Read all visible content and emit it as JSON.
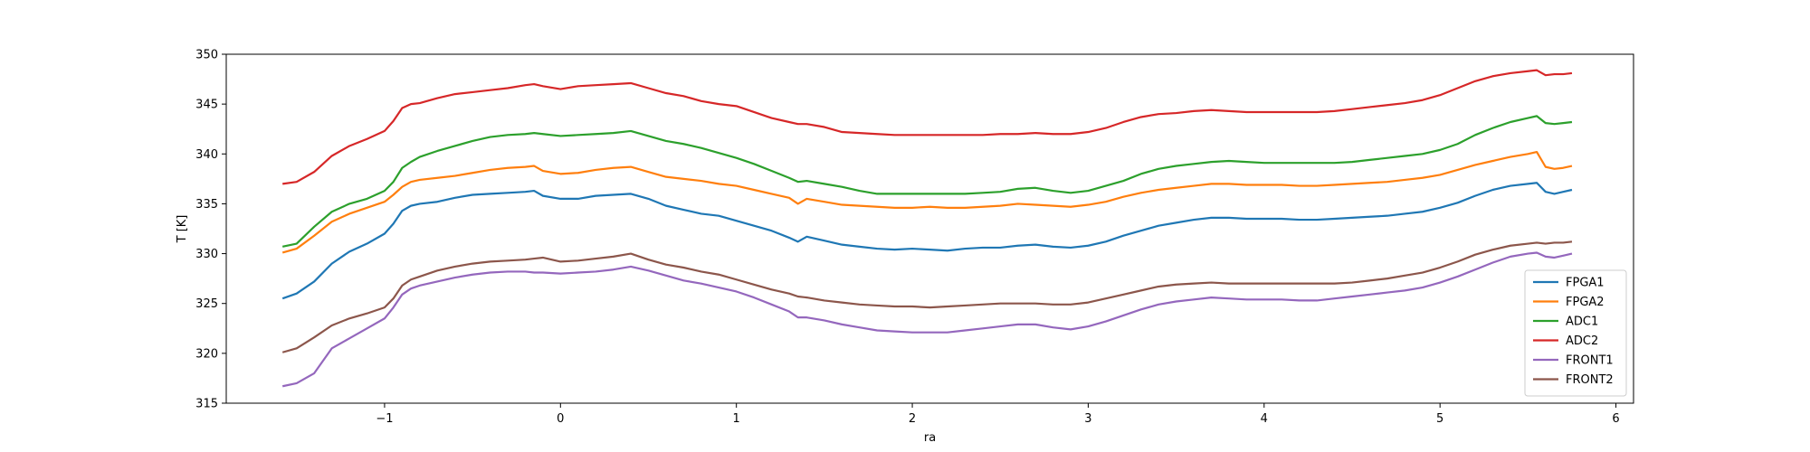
{
  "chart_data": {
    "type": "line",
    "title": "",
    "xlabel": "ra",
    "ylabel": "T [K]",
    "xlim": [
      -1.9,
      6.1
    ],
    "ylim": [
      315,
      350
    ],
    "xticks": [
      -1,
      0,
      1,
      2,
      3,
      4,
      5,
      6
    ],
    "xtick_labels": [
      "−1",
      "0",
      "1",
      "2",
      "3",
      "4",
      "5",
      "6"
    ],
    "yticks": [
      315,
      320,
      325,
      330,
      335,
      340,
      345,
      350
    ],
    "ytick_labels": [
      "315",
      "320",
      "325",
      "330",
      "335",
      "340",
      "345",
      "350"
    ],
    "grid": false,
    "legend_position": "lower-right",
    "x": [
      -1.58,
      -1.5,
      -1.4,
      -1.3,
      -1.2,
      -1.1,
      -1.0,
      -0.95,
      -0.9,
      -0.85,
      -0.8,
      -0.7,
      -0.6,
      -0.5,
      -0.4,
      -0.3,
      -0.2,
      -0.15,
      -0.1,
      0.0,
      0.1,
      0.2,
      0.3,
      0.4,
      0.5,
      0.6,
      0.7,
      0.8,
      0.9,
      1.0,
      1.1,
      1.2,
      1.3,
      1.35,
      1.4,
      1.5,
      1.6,
      1.7,
      1.8,
      1.9,
      2.0,
      2.1,
      2.2,
      2.3,
      2.4,
      2.5,
      2.6,
      2.7,
      2.8,
      2.9,
      3.0,
      3.1,
      3.2,
      3.3,
      3.4,
      3.5,
      3.6,
      3.7,
      3.8,
      3.9,
      4.0,
      4.1,
      4.2,
      4.3,
      4.4,
      4.5,
      4.6,
      4.7,
      4.8,
      4.9,
      5.0,
      5.1,
      5.2,
      5.3,
      5.4,
      5.5,
      5.55,
      5.6,
      5.65,
      5.7,
      5.75
    ],
    "series": [
      {
        "name": "FPGA1",
        "color": "#1f77b4",
        "values": [
          325.5,
          326.0,
          327.2,
          329.0,
          330.2,
          331.0,
          332.0,
          333.0,
          334.3,
          334.8,
          335.0,
          335.2,
          335.6,
          335.9,
          336.0,
          336.1,
          336.2,
          336.3,
          335.8,
          335.5,
          335.5,
          335.8,
          335.9,
          336.0,
          335.5,
          334.8,
          334.4,
          334.0,
          333.8,
          333.3,
          332.8,
          332.3,
          331.6,
          331.2,
          331.7,
          331.3,
          330.9,
          330.7,
          330.5,
          330.4,
          330.5,
          330.4,
          330.3,
          330.5,
          330.6,
          330.6,
          330.8,
          330.9,
          330.7,
          330.6,
          330.8,
          331.2,
          331.8,
          332.3,
          332.8,
          333.1,
          333.4,
          333.6,
          333.6,
          333.5,
          333.5,
          333.5,
          333.4,
          333.4,
          333.5,
          333.6,
          333.7,
          333.8,
          334.0,
          334.2,
          334.6,
          335.1,
          335.8,
          336.4,
          336.8,
          337.0,
          337.1,
          336.2,
          336.0,
          336.2,
          336.4
        ]
      },
      {
        "name": "FPGA2",
        "color": "#ff7f0e",
        "values": [
          330.1,
          330.5,
          331.8,
          333.2,
          334.0,
          334.6,
          335.2,
          335.9,
          336.7,
          337.2,
          337.4,
          337.6,
          337.8,
          338.1,
          338.4,
          338.6,
          338.7,
          338.8,
          338.3,
          338.0,
          338.1,
          338.4,
          338.6,
          338.7,
          338.2,
          337.7,
          337.5,
          337.3,
          337.0,
          336.8,
          336.4,
          336.0,
          335.6,
          335.0,
          335.5,
          335.2,
          334.9,
          334.8,
          334.7,
          334.6,
          334.6,
          334.7,
          334.6,
          334.6,
          334.7,
          334.8,
          335.0,
          334.9,
          334.8,
          334.7,
          334.9,
          335.2,
          335.7,
          336.1,
          336.4,
          336.6,
          336.8,
          337.0,
          337.0,
          336.9,
          336.9,
          336.9,
          336.8,
          336.8,
          336.9,
          337.0,
          337.1,
          337.2,
          337.4,
          337.6,
          337.9,
          338.4,
          338.9,
          339.3,
          339.7,
          340.0,
          340.2,
          338.7,
          338.5,
          338.6,
          338.8
        ]
      },
      {
        "name": "ADC1",
        "color": "#2ca02c",
        "values": [
          330.7,
          331.0,
          332.7,
          334.2,
          335.0,
          335.5,
          336.3,
          337.2,
          338.6,
          339.2,
          339.7,
          340.3,
          340.8,
          341.3,
          341.7,
          341.9,
          342.0,
          342.1,
          342.0,
          341.8,
          341.9,
          342.0,
          342.1,
          342.3,
          341.8,
          341.3,
          341.0,
          340.6,
          340.1,
          339.6,
          339.0,
          338.3,
          337.6,
          337.2,
          337.3,
          337.0,
          336.7,
          336.3,
          336.0,
          336.0,
          336.0,
          336.0,
          336.0,
          336.0,
          336.1,
          336.2,
          336.5,
          336.6,
          336.3,
          336.1,
          336.3,
          336.8,
          337.3,
          338.0,
          338.5,
          338.8,
          339.0,
          339.2,
          339.3,
          339.2,
          339.1,
          339.1,
          339.1,
          339.1,
          339.1,
          339.2,
          339.4,
          339.6,
          339.8,
          340.0,
          340.4,
          341.0,
          341.9,
          342.6,
          343.2,
          343.6,
          343.8,
          343.1,
          343.0,
          343.1,
          343.2
        ]
      },
      {
        "name": "ADC2",
        "color": "#d62728",
        "values": [
          337.0,
          337.2,
          338.2,
          339.8,
          340.8,
          341.5,
          342.3,
          343.3,
          344.6,
          345.0,
          345.1,
          345.6,
          346.0,
          346.2,
          346.4,
          346.6,
          346.9,
          347.0,
          346.8,
          346.5,
          346.8,
          346.9,
          347.0,
          347.1,
          346.6,
          346.1,
          345.8,
          345.3,
          345.0,
          344.8,
          344.2,
          343.6,
          343.2,
          343.0,
          343.0,
          342.7,
          342.2,
          342.1,
          342.0,
          341.9,
          341.9,
          341.9,
          341.9,
          341.9,
          341.9,
          342.0,
          342.0,
          342.1,
          342.0,
          342.0,
          342.2,
          342.6,
          343.2,
          343.7,
          344.0,
          344.1,
          344.3,
          344.4,
          344.3,
          344.2,
          344.2,
          344.2,
          344.2,
          344.2,
          344.3,
          344.5,
          344.7,
          344.9,
          345.1,
          345.4,
          345.9,
          346.6,
          347.3,
          347.8,
          348.1,
          348.3,
          348.4,
          347.9,
          348.0,
          348.0,
          348.1
        ]
      },
      {
        "name": "FRONT1",
        "color": "#9467bd",
        "values": [
          316.7,
          317.0,
          318.0,
          320.5,
          321.5,
          322.5,
          323.5,
          324.6,
          325.9,
          326.5,
          326.8,
          327.2,
          327.6,
          327.9,
          328.1,
          328.2,
          328.2,
          328.1,
          328.1,
          328.0,
          328.1,
          328.2,
          328.4,
          328.7,
          328.3,
          327.8,
          327.3,
          327.0,
          326.6,
          326.2,
          325.6,
          324.9,
          324.2,
          323.6,
          323.6,
          323.3,
          322.9,
          322.6,
          322.3,
          322.2,
          322.1,
          322.1,
          322.1,
          322.3,
          322.5,
          322.7,
          322.9,
          322.9,
          322.6,
          322.4,
          322.7,
          323.2,
          323.8,
          324.4,
          324.9,
          325.2,
          325.4,
          325.6,
          325.5,
          325.4,
          325.4,
          325.4,
          325.3,
          325.3,
          325.5,
          325.7,
          325.9,
          326.1,
          326.3,
          326.6,
          327.1,
          327.7,
          328.4,
          329.1,
          329.7,
          330.0,
          330.1,
          329.7,
          329.6,
          329.8,
          330.0
        ]
      },
      {
        "name": "FRONT2",
        "color": "#8c564b",
        "values": [
          320.1,
          320.5,
          321.6,
          322.8,
          323.5,
          324.0,
          324.6,
          325.5,
          326.8,
          327.4,
          327.7,
          328.3,
          328.7,
          329.0,
          329.2,
          329.3,
          329.4,
          329.5,
          329.6,
          329.2,
          329.3,
          329.5,
          329.7,
          330.0,
          329.4,
          328.9,
          328.6,
          328.2,
          327.9,
          327.4,
          326.9,
          326.4,
          326.0,
          325.7,
          325.6,
          325.3,
          325.1,
          324.9,
          324.8,
          324.7,
          324.7,
          324.6,
          324.7,
          324.8,
          324.9,
          325.0,
          325.0,
          325.0,
          324.9,
          324.9,
          325.1,
          325.5,
          325.9,
          326.3,
          326.7,
          326.9,
          327.0,
          327.1,
          327.0,
          327.0,
          327.0,
          327.0,
          327.0,
          327.0,
          327.0,
          327.1,
          327.3,
          327.5,
          327.8,
          328.1,
          328.6,
          329.2,
          329.9,
          330.4,
          330.8,
          331.0,
          331.1,
          331.0,
          331.1,
          331.1,
          331.2
        ]
      }
    ]
  }
}
